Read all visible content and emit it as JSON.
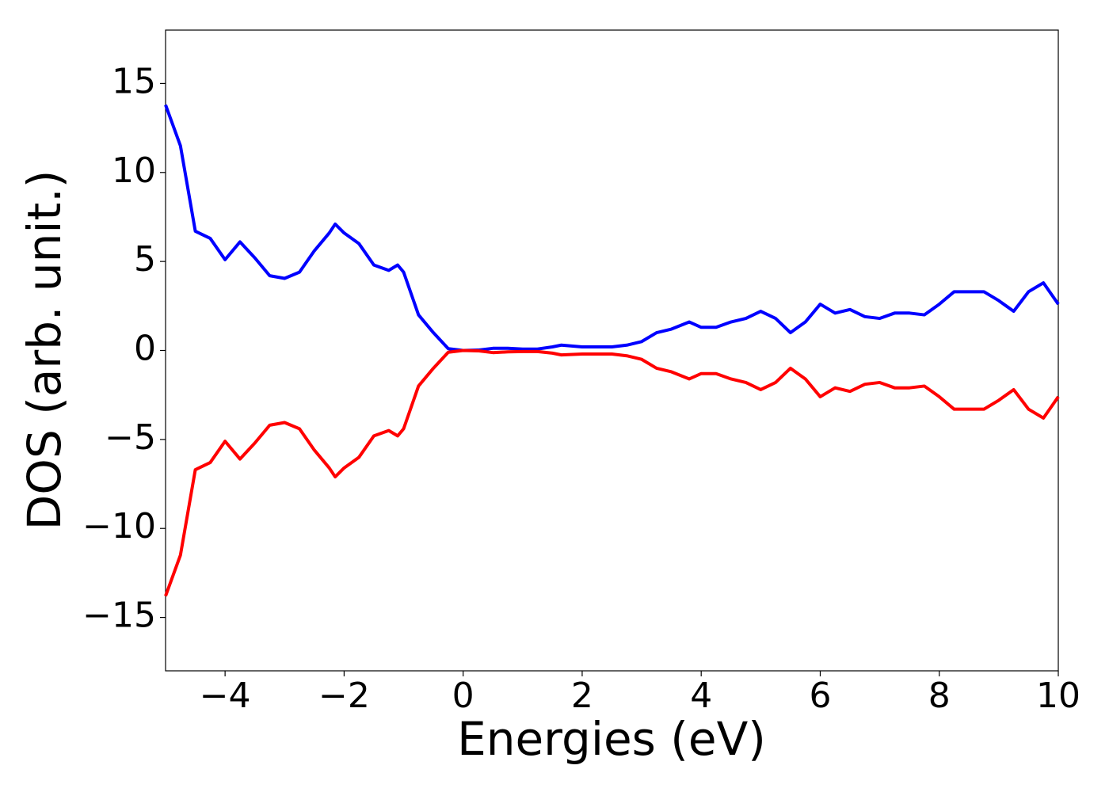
{
  "chart_data": {
    "type": "line",
    "x_label": "Energies (eV)",
    "y_label": "DOS (arb. unit.)",
    "x": [
      -5,
      -4.75,
      -4.5,
      -4.25,
      -4,
      -3.75,
      -3.5,
      -3.25,
      -3,
      -2.75,
      -2.5,
      -2.25,
      -2.15,
      -2,
      -1.75,
      -1.5,
      -1.25,
      -1.1,
      -1,
      -0.75,
      -0.5,
      -0.25,
      0,
      0.25,
      0.5,
      0.75,
      1,
      1.25,
      1.5,
      1.65,
      2,
      2.5,
      2.75,
      3,
      3.25,
      3.5,
      3.8,
      4,
      4.25,
      4.5,
      4.75,
      5,
      5.25,
      5.5,
      5.75,
      6,
      6.25,
      6.5,
      6.75,
      7,
      7.25,
      7.5,
      7.75,
      8,
      8.25,
      8.5,
      8.75,
      9,
      9.25,
      9.5,
      9.75,
      10
    ],
    "series": [
      {
        "color": "#0000ff",
        "values": [
          13.8,
          11.5,
          6.7,
          6.3,
          5.1,
          6.1,
          5.2,
          4.2,
          4.05,
          4.4,
          5.6,
          6.6,
          7.1,
          6.6,
          6.0,
          4.8,
          4.5,
          4.8,
          4.4,
          2.0,
          1.0,
          0.1,
          0,
          0.02,
          0.12,
          0.12,
          0.08,
          0.08,
          0.2,
          0.3,
          0.2,
          0.2,
          0.3,
          0.5,
          1.0,
          1.2,
          1.6,
          1.3,
          1.3,
          1.6,
          1.8,
          2.2,
          1.8,
          1.0,
          1.6,
          2.6,
          2.1,
          2.3,
          1.9,
          1.8,
          2.1,
          2.1,
          2.0,
          2.6,
          3.3,
          3.3,
          3.3,
          2.8,
          2.2,
          3.3,
          3.8,
          2.6
        ]
      },
      {
        "color": "#ff0000",
        "values": [
          -13.8,
          -11.5,
          -6.7,
          -6.3,
          -5.1,
          -6.1,
          -5.2,
          -4.2,
          -4.05,
          -4.4,
          -5.6,
          -6.6,
          -7.1,
          -6.6,
          -6.0,
          -4.8,
          -4.5,
          -4.8,
          -4.4,
          -2.0,
          -1.0,
          -0.1,
          0,
          -0.02,
          -0.12,
          -0.08,
          -0.06,
          -0.06,
          -0.15,
          -0.25,
          -0.2,
          -0.2,
          -0.3,
          -0.5,
          -1.0,
          -1.2,
          -1.6,
          -1.3,
          -1.3,
          -1.6,
          -1.8,
          -2.2,
          -1.8,
          -1.0,
          -1.6,
          -2.6,
          -2.1,
          -2.3,
          -1.9,
          -1.8,
          -2.1,
          -2.1,
          -2.0,
          -2.6,
          -3.3,
          -3.3,
          -3.3,
          -2.8,
          -2.2,
          -3.3,
          -3.8,
          -2.6
        ]
      }
    ],
    "xlim": [
      -5,
      10
    ],
    "xticks": [
      {
        "value": -4,
        "label": "−4"
      },
      {
        "value": -2,
        "label": "−2"
      },
      0,
      2,
      4,
      6,
      8,
      10
    ],
    "ylim": [
      -18,
      18
    ],
    "yticks": [
      {
        "value": -15,
        "label": "−15"
      },
      {
        "value": -10,
        "label": "−10"
      },
      {
        "value": -5,
        "label": "−5"
      },
      0,
      5,
      10,
      15
    ],
    "grid": false
  }
}
